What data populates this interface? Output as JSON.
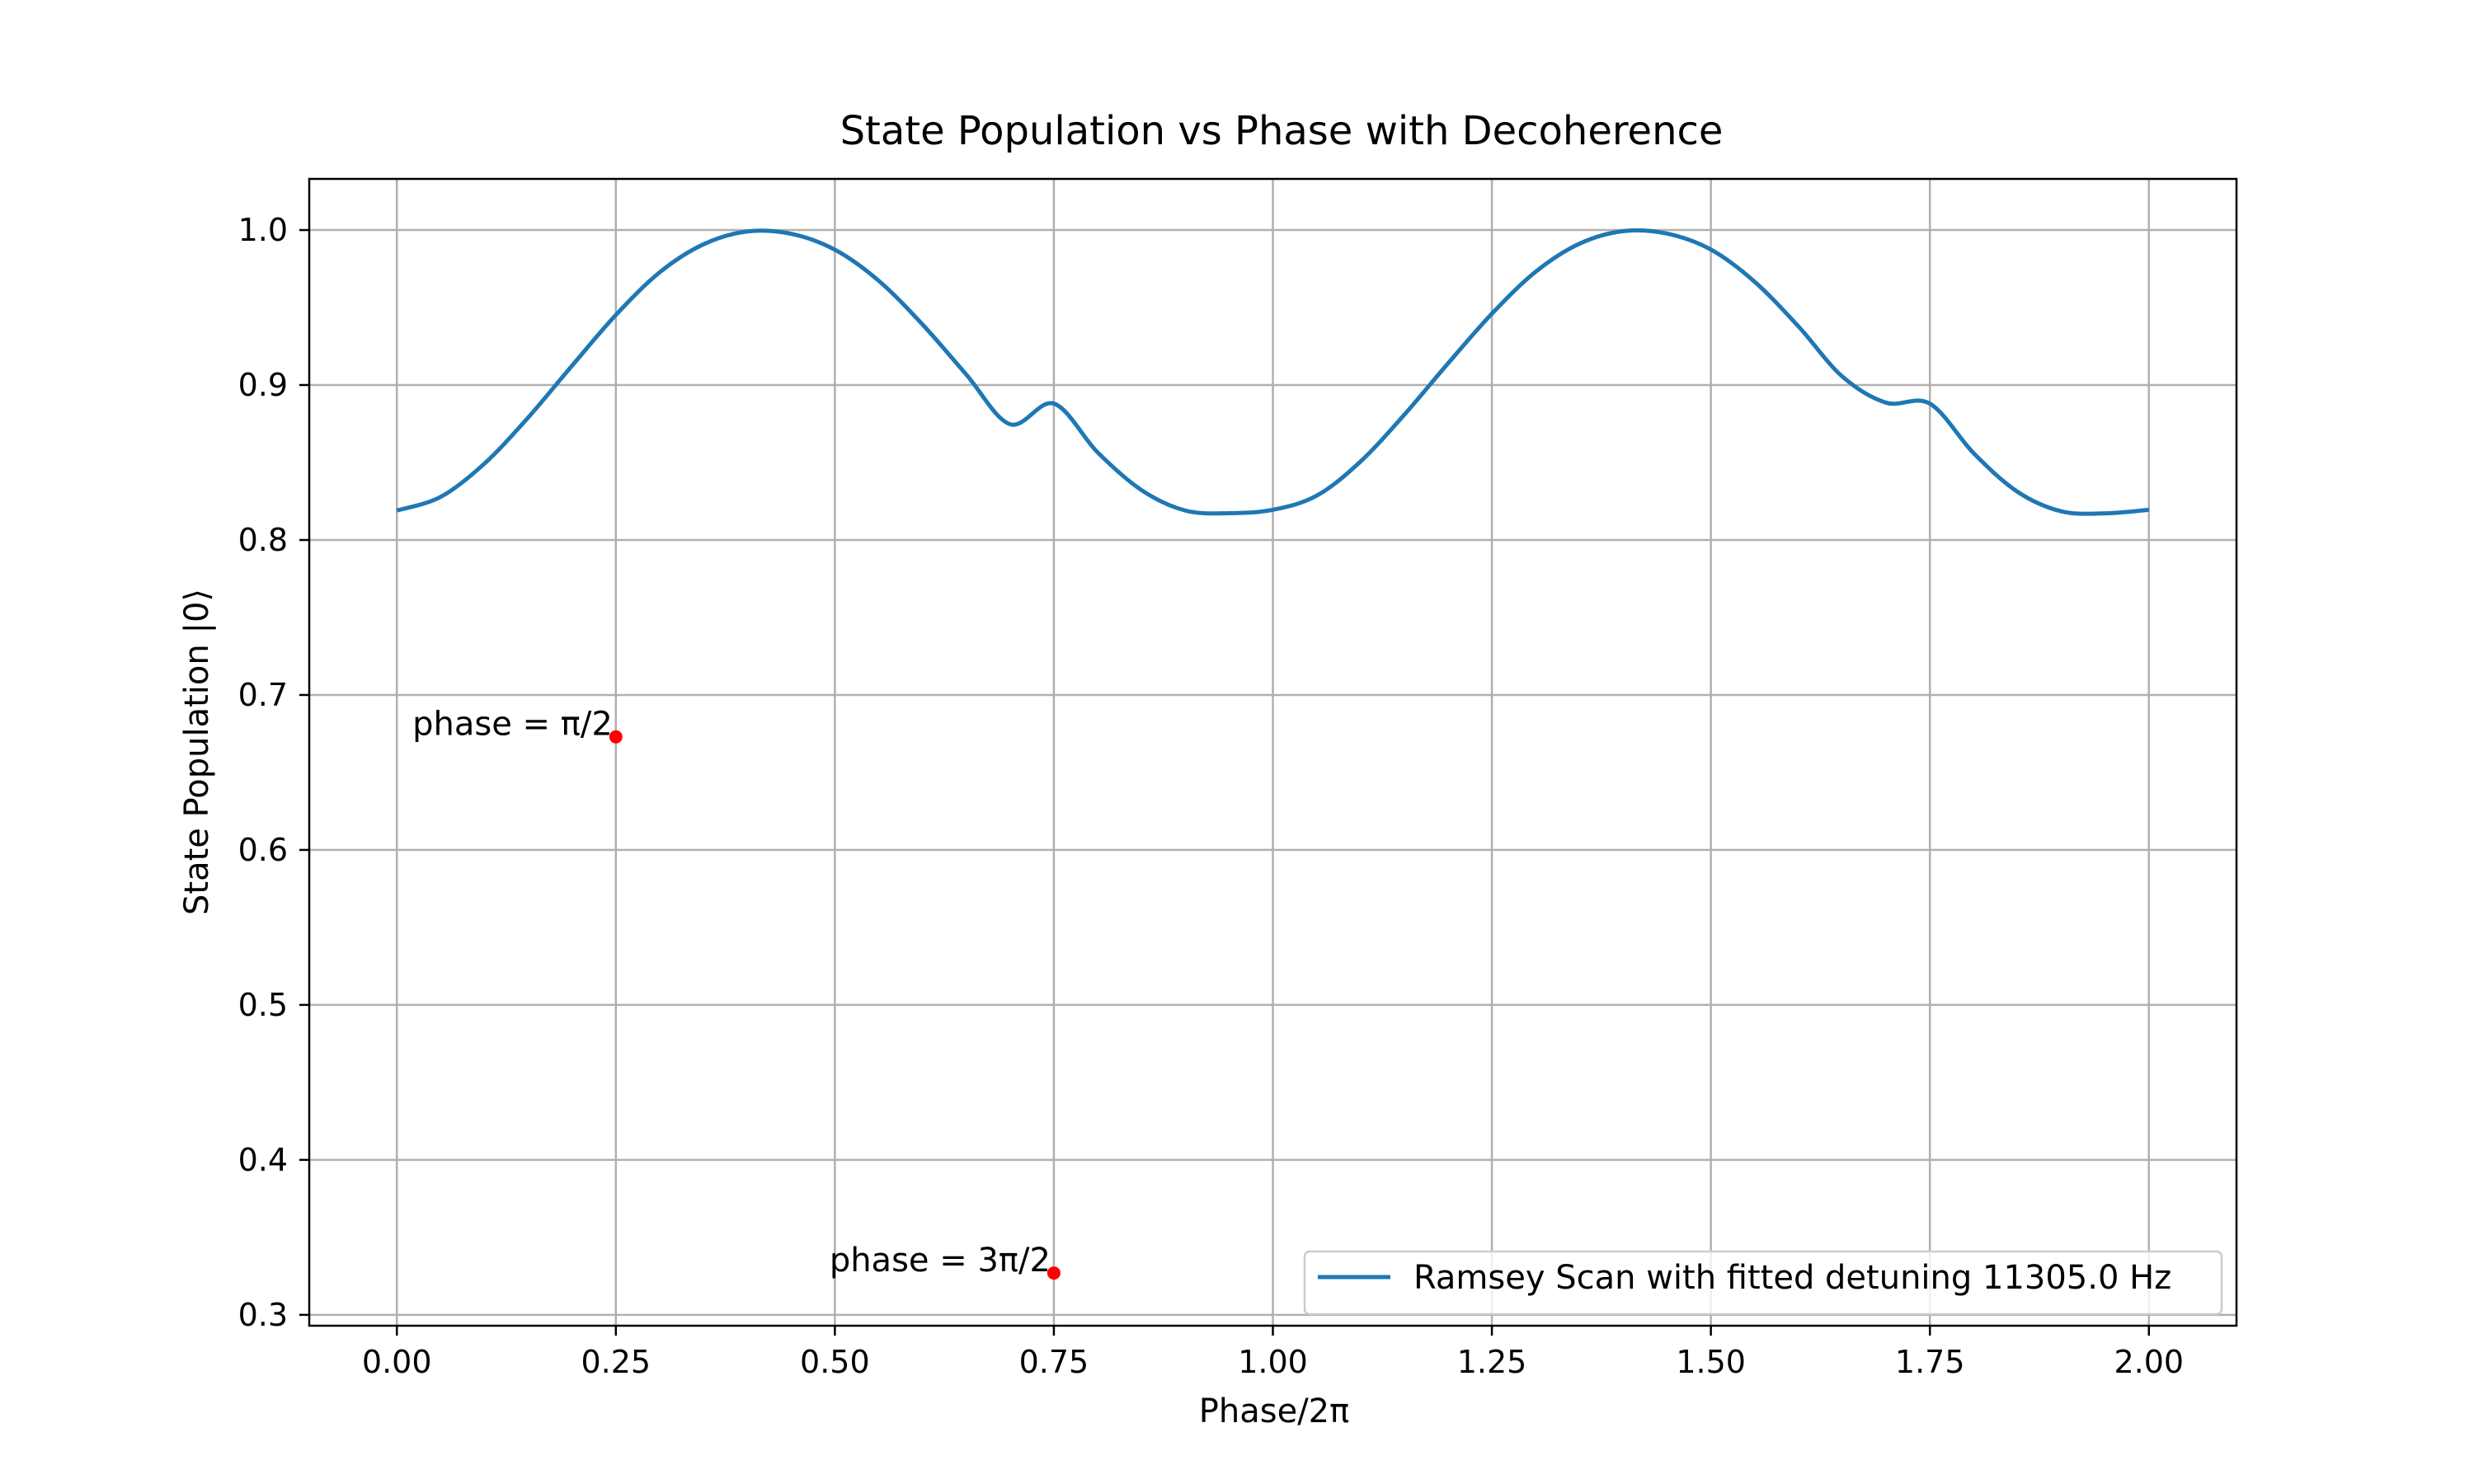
{
  "chart_data": {
    "type": "line",
    "title": "State Population vs Phase with Decoherence",
    "xlabel": "Phase/2π",
    "ylabel": "State Population |0⟩",
    "xlim": [
      -0.1,
      2.1
    ],
    "ylim": [
      0.293,
      1.033
    ],
    "xticks": [
      0.0,
      0.25,
      0.5,
      0.75,
      1.0,
      1.25,
      1.5,
      1.75,
      2.0
    ],
    "xtick_labels": [
      "0.00",
      "0.25",
      "0.50",
      "0.75",
      "1.00",
      "1.25",
      "1.50",
      "1.75",
      "2.00"
    ],
    "yticks": [
      0.3,
      0.4,
      0.5,
      0.6,
      0.7,
      0.8,
      0.9,
      1.0
    ],
    "ytick_labels": [
      "0.3",
      "0.4",
      "0.5",
      "0.6",
      "0.7",
      "0.8",
      "0.9",
      "1.0"
    ],
    "grid": true,
    "legend_position": "lower-right",
    "series": [
      {
        "name": "Ramsey Scan with fitted detuning 11305.0 Hz",
        "color": "#1f77b4",
        "x": [
          0.0,
          0.05,
          0.1,
          0.15,
          0.2,
          0.25,
          0.3,
          0.35,
          0.4,
          0.45,
          0.5,
          0.55,
          0.6,
          0.65,
          0.7,
          0.75,
          0.8,
          0.85,
          0.9,
          0.95,
          1.0,
          1.05,
          1.1,
          1.15,
          1.2,
          1.25,
          1.3,
          1.35,
          1.4,
          1.45,
          1.5,
          1.55,
          1.6,
          1.65,
          1.7,
          1.75,
          1.8,
          1.85,
          1.9,
          1.95,
          2.0
        ],
        "y": [
          0.819,
          0.8278,
          0.8493,
          0.8791,
          0.9125,
          0.9452,
          0.9727,
          0.9908,
          0.9991,
          0.9976,
          0.9873,
          0.9673,
          0.9391,
          0.9068,
          0.8747,
          0.888,
          0.8565,
          0.8322,
          0.819,
          0.8173,
          0.8195,
          0.8286,
          0.8506,
          0.8808,
          0.914,
          0.946,
          0.9731,
          0.9912,
          0.9993,
          0.9977,
          0.9874,
          0.9666,
          0.9378,
          0.9055,
          0.8886,
          0.888,
          0.856,
          0.8311,
          0.8185,
          0.8172,
          0.8195
        ]
      }
    ],
    "points": [
      {
        "x": 0.25,
        "y": 0.673,
        "label": "phase = π/2",
        "color": "#ff0000"
      },
      {
        "x": 0.75,
        "y": 0.327,
        "label": "phase = 3π/2",
        "color": "#ff0000"
      }
    ]
  }
}
